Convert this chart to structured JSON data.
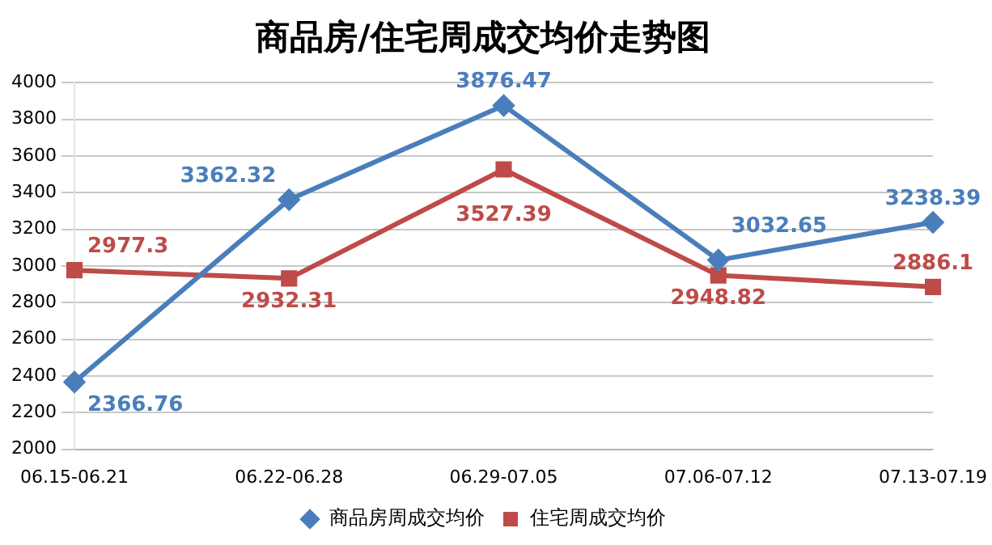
{
  "chart_data": {
    "type": "line",
    "title": "商品房/住宅周成交均价走势图",
    "categories": [
      "06.15-06.21",
      "06.22-06.28",
      "06.29-07.05",
      "07.06-07.12",
      "07.13-07.19"
    ],
    "series": [
      {
        "name": "商品房周成交均价",
        "color": "#4a7ebb",
        "marker": "diamond",
        "values": [
          2366.76,
          3362.32,
          3876.47,
          3032.65,
          3238.39
        ]
      },
      {
        "name": "住宅周成交均价",
        "color": "#be4b48",
        "marker": "square",
        "values": [
          2977.3,
          2932.31,
          3527.39,
          2948.82,
          2886.1
        ]
      }
    ],
    "ylim": [
      2000,
      4000
    ],
    "yticks": [
      2000,
      2200,
      2400,
      2600,
      2800,
      3000,
      3200,
      3400,
      3600,
      3800,
      4000
    ],
    "grid": "y",
    "legend": "bottom",
    "data_labels": true
  }
}
